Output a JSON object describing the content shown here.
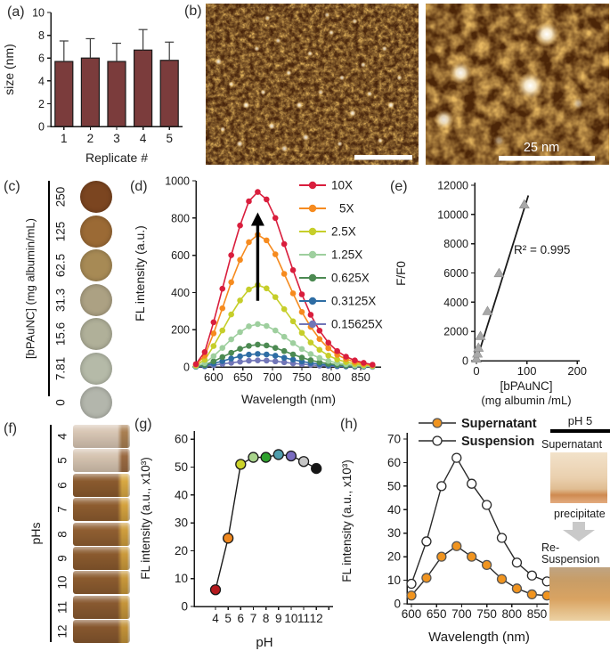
{
  "panel_labels": {
    "a": "(a)",
    "b": "(b)",
    "c": "(c)",
    "d": "(d)",
    "e": "(e)",
    "f": "(f)",
    "g": "(g)",
    "h": "(h)"
  },
  "panel_b": {
    "scale_bar_label": "25 nm",
    "base_color": "#46220a",
    "noise_color": "#c7781c",
    "particles_left": [
      [
        6,
        36,
        2.5,
        0.9
      ],
      [
        12,
        50,
        2,
        0.8
      ],
      [
        19,
        63,
        2.5,
        0.95
      ],
      [
        8,
        78,
        2,
        0.85
      ],
      [
        16,
        87,
        2.5,
        0.9
      ],
      [
        27,
        55,
        2,
        0.8
      ],
      [
        31,
        76,
        2.5,
        0.9
      ],
      [
        24,
        28,
        2,
        0.75
      ],
      [
        34,
        23,
        2,
        0.8
      ],
      [
        39,
        43,
        2,
        0.85
      ],
      [
        44,
        63,
        2.5,
        0.9
      ],
      [
        49,
        31,
        2,
        0.8
      ],
      [
        54,
        55,
        2,
        0.75
      ],
      [
        47,
        83,
        2.5,
        0.9
      ],
      [
        59,
        18,
        2,
        0.8
      ],
      [
        64,
        46,
        2,
        0.85
      ],
      [
        69,
        68,
        2.5,
        0.9
      ],
      [
        74,
        38,
        2,
        0.8
      ],
      [
        77,
        56,
        2,
        0.85
      ],
      [
        84,
        28,
        2,
        0.8
      ],
      [
        87,
        63,
        2.5,
        0.95
      ],
      [
        91,
        46,
        2,
        0.8
      ],
      [
        70,
        11,
        2,
        0.7
      ],
      [
        57,
        7,
        2,
        0.7
      ],
      [
        29,
        9,
        2,
        0.7
      ],
      [
        82,
        85,
        2,
        0.8
      ],
      [
        37,
        90,
        2.5,
        0.85
      ],
      [
        63,
        87,
        2,
        0.8
      ]
    ],
    "particles_right": [
      [
        66,
        19,
        10,
        1
      ],
      [
        19,
        43,
        9,
        0.95
      ],
      [
        57,
        51,
        11,
        1
      ],
      [
        10,
        72,
        8,
        0.85
      ],
      [
        83,
        62,
        5,
        0.5
      ],
      [
        40,
        85,
        5,
        0.4
      ]
    ]
  },
  "panel_c": {
    "axis_label": "[bPAuNC] (mg albumin/mL)",
    "wells": [
      {
        "conc": "250",
        "color": "#7b4520"
      },
      {
        "conc": "125",
        "color": "#9b6a35"
      },
      {
        "conc": "62.5",
        "color": "#a78a55"
      },
      {
        "conc": "31.3",
        "color": "#aca183"
      },
      {
        "conc": "15.6",
        "color": "#b0b099"
      },
      {
        "conc": "7.81",
        "color": "#b5baa8"
      },
      {
        "conc": "0",
        "color": "#b3b6ac"
      }
    ]
  },
  "panel_f": {
    "axis_label": "pHs",
    "tubes": [
      {
        "ph": "4",
        "body": "#d8c6b4",
        "accent": "#a97f52"
      },
      {
        "ph": "5",
        "body": "#d6c4b1",
        "accent": "#9a6a42"
      },
      {
        "ph": "6",
        "body": "#8a5a2e",
        "accent": "#d8a843"
      },
      {
        "ph": "7",
        "body": "#8d5c2f",
        "accent": "#d4a23f"
      },
      {
        "ph": "8",
        "body": "#8f5e31",
        "accent": "#cf9e3e"
      },
      {
        "ph": "9",
        "body": "#8a5a2e",
        "accent": "#cb9a3c"
      },
      {
        "ph": "10",
        "body": "#8b5b2f",
        "accent": "#c8983b"
      },
      {
        "ph": "11",
        "body": "#885930",
        "accent": "#c5953a"
      },
      {
        "ph": "12",
        "body": "#86572e",
        "accent": "#c29239"
      }
    ]
  },
  "panel_h_side": {
    "title": "pH 5",
    "label_top": "Supernatant",
    "label_mid": "precipitate",
    "label_re1": "Re-",
    "label_re2": "Suspension"
  },
  "chart_data": [
    {
      "panel": "a",
      "type": "bar",
      "categories": [
        "1",
        "2",
        "3",
        "4",
        "5"
      ],
      "values": [
        5.7,
        6.0,
        5.7,
        6.7,
        5.8
      ],
      "errors": [
        1.8,
        1.7,
        1.6,
        1.8,
        1.6
      ],
      "xlabel": "Replicate #",
      "ylabel": "size (nm)",
      "ylim": [
        0,
        10
      ],
      "yticks": [
        0,
        2,
        4,
        6,
        8,
        10
      ],
      "bar_color": "#7b3c3c"
    },
    {
      "panel": "d",
      "type": "line",
      "x": [
        570,
        585,
        600,
        615,
        630,
        645,
        660,
        675,
        690,
        705,
        720,
        735,
        750,
        765,
        780,
        795,
        810,
        825,
        840,
        855,
        870
      ],
      "series": [
        {
          "name": "10X",
          "color": "#d91e3d",
          "values": [
            15,
            80,
            240,
            420,
            600,
            760,
            890,
            940,
            900,
            800,
            660,
            520,
            390,
            280,
            195,
            130,
            85,
            55,
            35,
            22,
            12
          ]
        },
        {
          "name": "5X",
          "color": "#f68b1f",
          "values": [
            12,
            60,
            180,
            315,
            455,
            575,
            670,
            710,
            680,
            605,
            500,
            395,
            295,
            215,
            150,
            100,
            65,
            42,
            26,
            16,
            9
          ]
        },
        {
          "name": "2.5X",
          "color": "#c6ce2a",
          "values": [
            8,
            38,
            112,
            196,
            282,
            357,
            416,
            440,
            422,
            375,
            310,
            245,
            183,
            131,
            92,
            61,
            40,
            26,
            16,
            10,
            6
          ]
        },
        {
          "name": "1.25X",
          "color": "#9ecf9e",
          "values": [
            4,
            20,
            58,
            102,
            148,
            187,
            218,
            230,
            220,
            196,
            162,
            128,
            96,
            69,
            48,
            32,
            21,
            14,
            8,
            5,
            3
          ]
        },
        {
          "name": "0.625X",
          "color": "#4c8a52",
          "values": [
            2,
            10,
            30,
            53,
            76,
            97,
            113,
            120,
            115,
            102,
            85,
            67,
            50,
            36,
            25,
            17,
            11,
            7,
            4,
            3,
            2
          ]
        },
        {
          "name": "0.3125X",
          "color": "#2e6da4",
          "values": [
            1,
            6,
            18,
            31,
            45,
            57,
            66,
            70,
            67,
            60,
            49,
            39,
            29,
            21,
            15,
            10,
            6,
            4,
            3,
            2,
            1
          ]
        },
        {
          "name": "0.15625X",
          "color": "#7176b8",
          "values": [
            1,
            3,
            9,
            16,
            22,
            28,
            33,
            35,
            34,
            30,
            25,
            19,
            15,
            11,
            7,
            5,
            3,
            2,
            1,
            1,
            1
          ]
        }
      ],
      "xlabel": "Wavelength (nm)",
      "ylabel": "FL intensity (a.u.)",
      "ylim": [
        0,
        1000
      ],
      "yticks": [
        0,
        200,
        400,
        600,
        800,
        1000
      ],
      "xticks": [
        600,
        650,
        700,
        750,
        800,
        850
      ],
      "annotation_arrow": {
        "x": 675,
        "y_from": 355,
        "y_to": 830
      },
      "legend_position": "right"
    },
    {
      "panel": "e",
      "type": "scatter",
      "points": [
        [
          0,
          100
        ],
        [
          2,
          450
        ],
        [
          4,
          850
        ],
        [
          8,
          1650
        ],
        [
          22,
          3350
        ],
        [
          45,
          5950
        ],
        [
          95,
          10650
        ]
      ],
      "fit_line": [
        [
          0,
          0
        ],
        [
          103,
          11300
        ]
      ],
      "annotation": "R² = 0.995",
      "xlabel_lines": [
        "[bPAuNC]",
        "(mg albumin /mL)"
      ],
      "ylabel": "F/F0",
      "ylim": [
        0,
        12000
      ],
      "yticks": [
        0,
        2000,
        4000,
        6000,
        8000,
        10000,
        12000
      ],
      "xlim": [
        0,
        210
      ],
      "xticks": [
        0,
        100,
        200
      ],
      "marker_color": "#a8a8a8"
    },
    {
      "panel": "g",
      "type": "line",
      "x": [
        4,
        5,
        6,
        7,
        8,
        9,
        10,
        11,
        12
      ],
      "values": [
        6,
        24.5,
        51,
        53.5,
        53.5,
        54.5,
        54,
        52,
        49.5
      ],
      "point_colors": [
        "#b5191e",
        "#f0881e",
        "#ccd32b",
        "#a8d38b",
        "#2ea12d",
        "#4f9dad",
        "#7a6cc0",
        "#c6c6c6",
        "#151515"
      ],
      "xlabel": "pH",
      "ylabel": "FL intensity (a.u., x10³)",
      "ylim": [
        0,
        60
      ],
      "yticks": [
        0,
        10,
        20,
        30,
        40,
        50,
        60
      ],
      "xticks": [
        4,
        5,
        6,
        7,
        8,
        9,
        10,
        11,
        12
      ]
    },
    {
      "panel": "h",
      "type": "line",
      "x": [
        600,
        630,
        660,
        690,
        720,
        750,
        780,
        810,
        840,
        870
      ],
      "series": [
        {
          "name": "Supernatant",
          "fill": "solid",
          "color": "#f0941f",
          "values": [
            3.5,
            11,
            20,
            24.5,
            20,
            16.5,
            10.5,
            6.5,
            4,
            3.5
          ]
        },
        {
          "name": "Suspension",
          "fill": "open",
          "color": "#ffffff",
          "values": [
            8.5,
            26.5,
            50,
            62,
            51,
            42,
            28,
            17.5,
            12,
            9.5
          ]
        }
      ],
      "xlabel": "Wavelength (nm)",
      "ylabel": "FL intensity (a.u., x10³)",
      "ylim": [
        0,
        70
      ],
      "yticks": [
        0,
        10,
        20,
        30,
        40,
        50,
        60,
        70
      ],
      "xticks": [
        600,
        650,
        700,
        750,
        800,
        850
      ],
      "legend_position": "top"
    }
  ]
}
